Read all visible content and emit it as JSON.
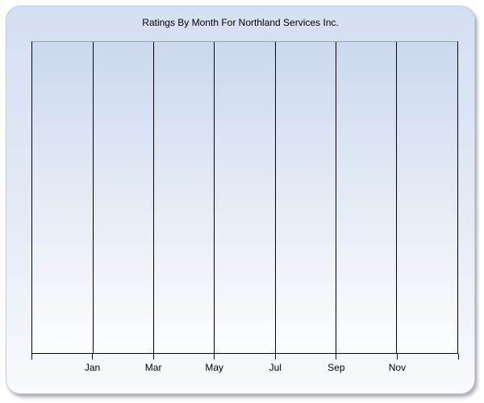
{
  "chart_data": {
    "type": "line",
    "title": "Ratings By Month For Northland Services Inc.",
    "xlabel": "",
    "ylabel": "",
    "x_axis": {
      "divisions": 7,
      "tick_labels": [
        "Jan",
        "Mar",
        "May",
        "Jul",
        "Sep",
        "Nov"
      ],
      "labeled_division_indices": [
        1,
        2,
        3,
        4,
        5,
        6
      ],
      "edge_ticks_unlabeled": true
    },
    "y_axis": {
      "tick_labels": []
    },
    "series": [],
    "grid": "vertical-only",
    "legend": "none"
  },
  "colors": {
    "page_background": "#ffffff",
    "panel_gradient_top": "#d4dff1",
    "panel_gradient_bottom": "#f9fafd",
    "panel_border": "#c2cde0",
    "plot_gradient_top": "#cbd8ee",
    "plot_gradient_bottom": "#fdfdfe",
    "plot_top_border": "#9aa5b4",
    "gridline": "#000000",
    "text": "#000000",
    "shadow": "#7d7d7d"
  }
}
